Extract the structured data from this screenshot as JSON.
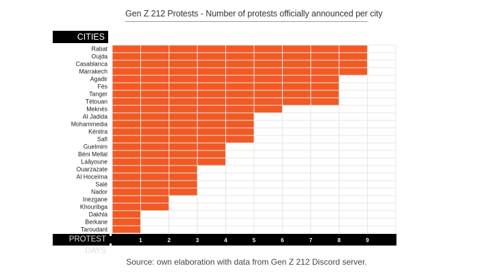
{
  "chart_data": {
    "type": "bar",
    "orientation": "horizontal",
    "title": "Gen Z 212 Protests - Number of protests officially announced per city",
    "ylabel": "CITIES",
    "xlabel": "PROTEST DAYS",
    "source": "Source: own elaboration with data from Gen Z 212 Discord server.",
    "categories": [
      "Rabat",
      "Oujda",
      "Casablanca",
      "Marrakech",
      "Agadir",
      "Fès",
      "Tanger",
      "Tétouan",
      "Meknès",
      "Al Jadida",
      "Mohammedia",
      "Kénitra",
      "Safi",
      "Guelmim",
      "Béni Mellal",
      "Laâyoune",
      "Ouarzazate",
      "Al Hoceïma",
      "Salé",
      "Nador",
      "Inezgane",
      "Khouribga",
      "Dakhla",
      "Berkane",
      "Taroudant"
    ],
    "values": [
      9,
      9,
      9,
      9,
      8,
      8,
      8,
      8,
      6,
      5,
      5,
      5,
      5,
      4,
      4,
      4,
      3,
      3,
      3,
      3,
      2,
      2,
      1,
      1,
      1
    ],
    "xticks": [
      "1",
      "2",
      "3",
      "4",
      "5",
      "6",
      "7",
      "8",
      "9"
    ],
    "xlim": [
      0,
      10
    ],
    "grid": true,
    "bar_color": "#f15a24",
    "grid_color": "#e6e6e6"
  }
}
